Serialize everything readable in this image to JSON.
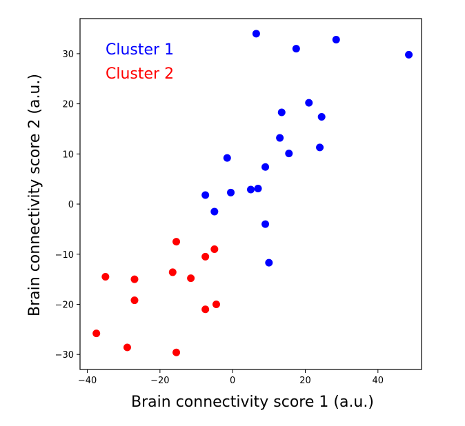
{
  "chart_data": {
    "type": "scatter",
    "title": "",
    "xlabel": "Brain connectivity score 1 (a.u.)",
    "ylabel": "Brain connectivity score 2 (a.u.)",
    "xlim": [
      -42,
      52
    ],
    "ylim": [
      -33,
      37
    ],
    "xticks": [
      -40,
      -20,
      0,
      20,
      40
    ],
    "yticks": [
      -30,
      -20,
      -10,
      0,
      10,
      20,
      30
    ],
    "grid": false,
    "legend": "top-left",
    "series": [
      {
        "name": "Cluster 1",
        "color": "#0000ff",
        "x": [
          6.5,
          17.5,
          28.5,
          48.5,
          21,
          13.5,
          24.5,
          13,
          24,
          15.5,
          -1.5,
          9,
          -0.5,
          5,
          7,
          -7.5,
          -5,
          9,
          10
        ],
        "y": [
          34,
          31,
          32.8,
          29.8,
          20.2,
          18.3,
          17.4,
          13.2,
          11.3,
          10.1,
          9.2,
          7.4,
          2.3,
          2.9,
          3.1,
          1.8,
          -1.5,
          -4,
          -11.7
        ]
      },
      {
        "name": "Cluster 2",
        "color": "#ff0000",
        "x": [
          -15.5,
          -7.5,
          -5,
          -35,
          -27,
          -16.5,
          -11.5,
          -27,
          -4.5,
          -7.5,
          -37.5,
          -29,
          -15.5
        ],
        "y": [
          -7.5,
          -10.5,
          -9,
          -14.5,
          -15,
          -13.6,
          -14.8,
          -19.2,
          -20,
          -21,
          -25.8,
          -28.6,
          -29.6
        ]
      }
    ]
  }
}
